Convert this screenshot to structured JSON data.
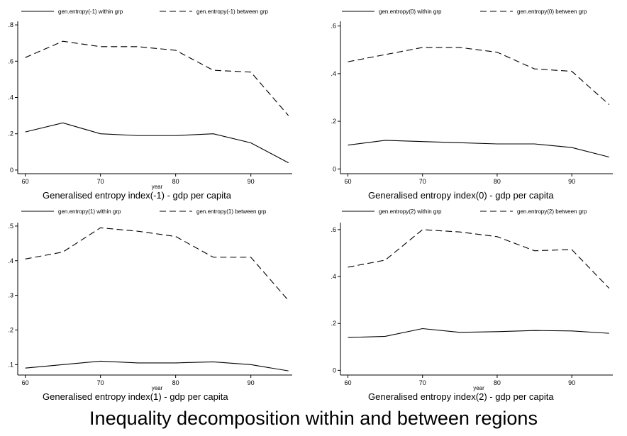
{
  "figure_title": "Inequality decomposition within and between regions",
  "colors": {
    "line": "#000000",
    "axis": "#000000",
    "background": "#ffffff"
  },
  "chart_data": [
    {
      "type": "line",
      "xlabel": "year",
      "caption": "Generalised entropy index(-1) - gdp per capita",
      "x": [
        60,
        65,
        70,
        75,
        80,
        85,
        90,
        95
      ],
      "xlim": [
        59,
        95.5
      ],
      "ylim": [
        -0.02,
        0.82
      ],
      "xticks": [
        60,
        70,
        80,
        90
      ],
      "xtick_labels": [
        "60",
        "70",
        "80",
        "90"
      ],
      "yticks": [
        0,
        0.2,
        0.4,
        0.6,
        0.8
      ],
      "ytick_labels": [
        "0",
        ".2",
        ".4",
        ".6",
        ".8"
      ],
      "legend_position": "top",
      "series": [
        {
          "name": "gen.entropy(-1) within grp",
          "style": "solid",
          "values": [
            0.21,
            0.26,
            0.2,
            0.19,
            0.19,
            0.2,
            0.15,
            0.04
          ]
        },
        {
          "name": "gen.entropy(-1) between grp",
          "style": "dashed",
          "values": [
            0.62,
            0.71,
            0.68,
            0.68,
            0.66,
            0.55,
            0.54,
            0.3
          ]
        }
      ]
    },
    {
      "type": "line",
      "xlabel": "",
      "caption": "Generalised entropy index(0) - gdp per capita",
      "x": [
        60,
        65,
        70,
        75,
        80,
        85,
        90,
        95
      ],
      "xlim": [
        59,
        95.5
      ],
      "ylim": [
        -0.02,
        0.62
      ],
      "xticks": [
        60,
        70,
        80,
        90
      ],
      "xtick_labels": [
        "60",
        "70",
        "80",
        "90"
      ],
      "yticks": [
        0,
        0.2,
        0.4,
        0.6
      ],
      "ytick_labels": [
        "0",
        ".2",
        ".4",
        ".6"
      ],
      "legend_position": "top",
      "series": [
        {
          "name": "gen.entropy(0) within grp",
          "style": "solid",
          "values": [
            0.1,
            0.12,
            0.115,
            0.11,
            0.105,
            0.105,
            0.09,
            0.05
          ]
        },
        {
          "name": "gen.entropy(0) between grp",
          "style": "dashed",
          "values": [
            0.45,
            0.48,
            0.51,
            0.51,
            0.49,
            0.42,
            0.41,
            0.27
          ]
        }
      ]
    },
    {
      "type": "line",
      "xlabel": "year",
      "caption": "Generalised entropy index(1) - gdp per capita",
      "x": [
        60,
        65,
        70,
        75,
        80,
        85,
        90,
        95
      ],
      "xlim": [
        59,
        95.5
      ],
      "ylim": [
        0.07,
        0.51
      ],
      "xticks": [
        60,
        70,
        80,
        90
      ],
      "xtick_labels": [
        "60",
        "70",
        "80",
        "90"
      ],
      "yticks": [
        0.1,
        0.2,
        0.3,
        0.4,
        0.5
      ],
      "ytick_labels": [
        ".1",
        ".2",
        ".3",
        ".4",
        ".5"
      ],
      "legend_position": "top",
      "series": [
        {
          "name": "gen.entropy(1) within grp",
          "style": "solid",
          "values": [
            0.09,
            0.1,
            0.11,
            0.105,
            0.105,
            0.108,
            0.1,
            0.082
          ]
        },
        {
          "name": "gen.entropy(1) between grp",
          "style": "dashed",
          "values": [
            0.405,
            0.425,
            0.495,
            0.485,
            0.47,
            0.41,
            0.41,
            0.285
          ]
        }
      ]
    },
    {
      "type": "line",
      "xlabel": "year",
      "caption": "Generalised entropy index(2) - gdp per capita",
      "x": [
        60,
        65,
        70,
        75,
        80,
        85,
        90,
        95
      ],
      "xlim": [
        59,
        95.5
      ],
      "ylim": [
        -0.02,
        0.63
      ],
      "xticks": [
        60,
        70,
        80,
        90
      ],
      "xtick_labels": [
        "60",
        "70",
        "80",
        "90"
      ],
      "yticks": [
        0,
        0.2,
        0.4,
        0.6
      ],
      "ytick_labels": [
        "0",
        ".2",
        ".4",
        ".6"
      ],
      "legend_position": "top",
      "series": [
        {
          "name": "gen.entropy(2) within grp",
          "style": "solid",
          "values": [
            0.14,
            0.145,
            0.178,
            0.162,
            0.165,
            0.17,
            0.168,
            0.158
          ]
        },
        {
          "name": "gen.entropy(2) between grp",
          "style": "dashed",
          "values": [
            0.44,
            0.47,
            0.6,
            0.59,
            0.57,
            0.51,
            0.515,
            0.35
          ]
        }
      ]
    }
  ]
}
